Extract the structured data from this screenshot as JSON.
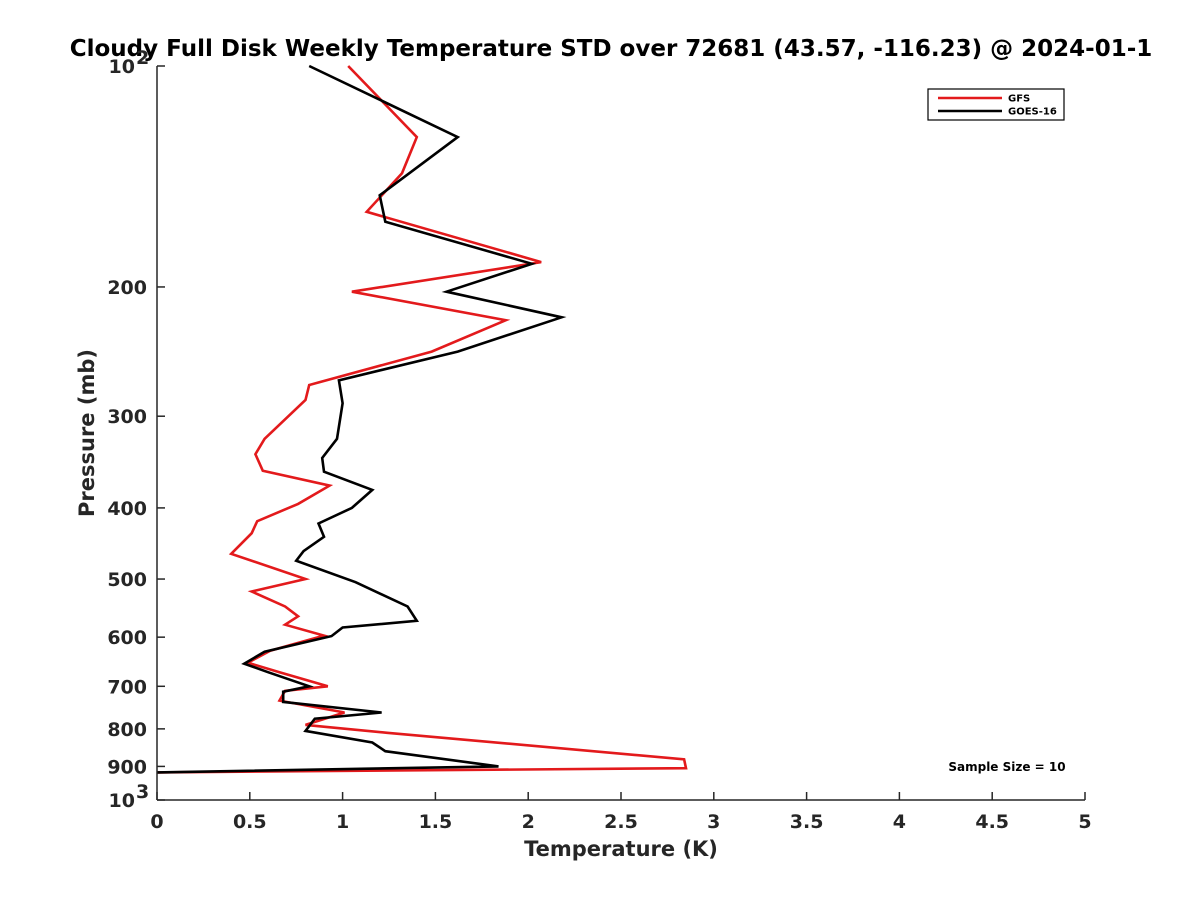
{
  "chart_data": {
    "type": "line",
    "title": "Cloudy Full Disk Weekly Temperature STD over 72681 (43.57, -116.23) @ 2024-01-1",
    "xlabel": "Temperature (K)",
    "ylabel": "Pressure (mb)",
    "xlim": [
      0,
      5
    ],
    "ylim": [
      100,
      1000
    ],
    "y_scale": "log",
    "y_reversed": true,
    "grid": false,
    "legend_position": "top-right",
    "x_ticks": [
      {
        "value": 0,
        "label": "0"
      },
      {
        "value": 0.5,
        "label": "0.5"
      },
      {
        "value": 1,
        "label": "1"
      },
      {
        "value": 1.5,
        "label": "1.5"
      },
      {
        "value": 2,
        "label": "2"
      },
      {
        "value": 2.5,
        "label": "2.5"
      },
      {
        "value": 3,
        "label": "3"
      },
      {
        "value": 3.5,
        "label": "3.5"
      },
      {
        "value": 4,
        "label": "4"
      },
      {
        "value": 4.5,
        "label": "4.5"
      },
      {
        "value": 5,
        "label": "5"
      }
    ],
    "y_ticks": [
      {
        "value": 100,
        "base": "10",
        "exp": "2"
      },
      {
        "value": 200,
        "label": "200"
      },
      {
        "value": 300,
        "label": "300"
      },
      {
        "value": 400,
        "label": "400"
      },
      {
        "value": 500,
        "label": "500"
      },
      {
        "value": 600,
        "label": "600"
      },
      {
        "value": 700,
        "label": "700"
      },
      {
        "value": 800,
        "label": "800"
      },
      {
        "value": 900,
        "label": "900"
      },
      {
        "value": 1000,
        "base": "10",
        "exp": "3"
      }
    ],
    "annotation": "Sample Size = 10",
    "series": [
      {
        "name": "GFS",
        "color": "#e31a1c",
        "points": [
          [
            1.03,
            100
          ],
          [
            1.4,
            125
          ],
          [
            1.32,
            140
          ],
          [
            1.13,
            158
          ],
          [
            2.07,
            185
          ],
          [
            1.05,
            203
          ],
          [
            1.88,
            222
          ],
          [
            1.48,
            245
          ],
          [
            0.82,
            272
          ],
          [
            0.8,
            285
          ],
          [
            0.58,
            322
          ],
          [
            0.53,
            338
          ],
          [
            0.57,
            356
          ],
          [
            0.93,
            373
          ],
          [
            0.76,
            395
          ],
          [
            0.54,
            417
          ],
          [
            0.51,
            433
          ],
          [
            0.4,
            462
          ],
          [
            0.8,
            500
          ],
          [
            0.51,
            520
          ],
          [
            0.69,
            545
          ],
          [
            0.76,
            562
          ],
          [
            0.69,
            577
          ],
          [
            0.9,
            597
          ],
          [
            0.61,
            626
          ],
          [
            0.49,
            650
          ],
          [
            0.66,
            670
          ],
          [
            0.92,
            700
          ],
          [
            0.69,
            710
          ],
          [
            0.66,
            732
          ],
          [
            1.01,
            760
          ],
          [
            0.8,
            790
          ],
          [
            1.24,
            810
          ],
          [
            2.84,
            880
          ],
          [
            2.85,
            905
          ],
          [
            0.0,
            917
          ]
        ]
      },
      {
        "name": "GOES-16",
        "color": "#000000",
        "points": [
          [
            0.82,
            100
          ],
          [
            1.62,
            125
          ],
          [
            1.2,
            150
          ],
          [
            1.23,
            163
          ],
          [
            2.02,
            186
          ],
          [
            1.56,
            203
          ],
          [
            2.18,
            220
          ],
          [
            1.62,
            245
          ],
          [
            0.98,
            268
          ],
          [
            1.0,
            288
          ],
          [
            0.97,
            322
          ],
          [
            0.89,
            342
          ],
          [
            0.9,
            357
          ],
          [
            1.16,
            378
          ],
          [
            1.05,
            400
          ],
          [
            0.87,
            420
          ],
          [
            0.9,
            438
          ],
          [
            0.79,
            458
          ],
          [
            0.75,
            472
          ],
          [
            1.07,
            505
          ],
          [
            1.35,
            545
          ],
          [
            1.4,
            570
          ],
          [
            1.0,
            582
          ],
          [
            0.94,
            598
          ],
          [
            0.58,
            628
          ],
          [
            0.47,
            652
          ],
          [
            0.6,
            670
          ],
          [
            0.82,
            700
          ],
          [
            0.68,
            712
          ],
          [
            0.68,
            735
          ],
          [
            1.21,
            760
          ],
          [
            0.85,
            775
          ],
          [
            0.8,
            805
          ],
          [
            1.16,
            835
          ],
          [
            1.23,
            858
          ],
          [
            1.84,
            900
          ],
          [
            0.0,
            917
          ]
        ]
      }
    ]
  }
}
